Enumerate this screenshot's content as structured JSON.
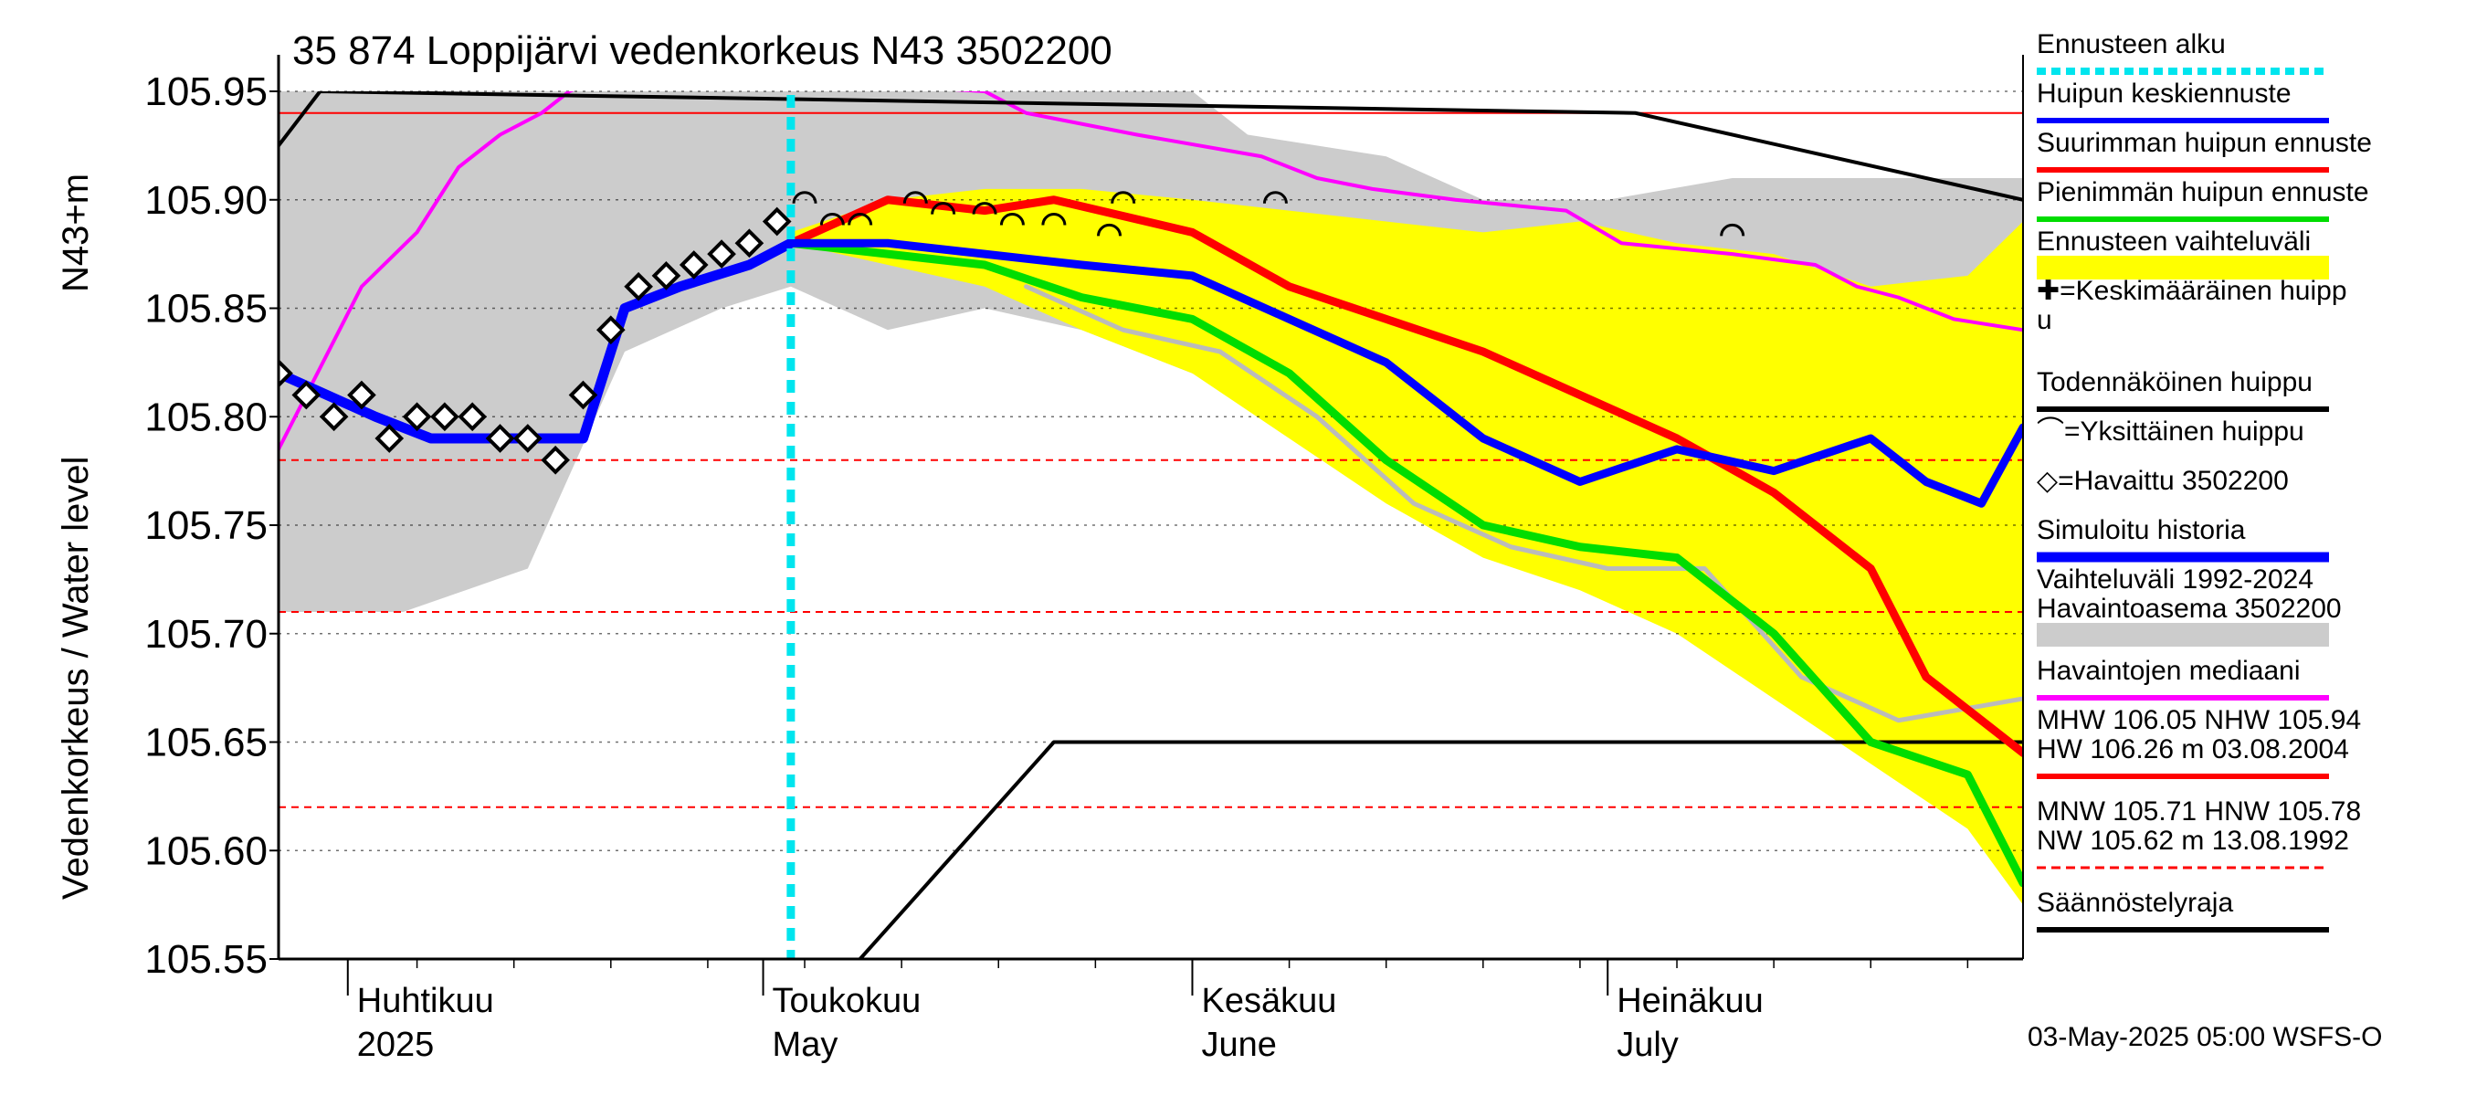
{
  "chart_data": {
    "type": "line",
    "title": "35 874 Loppijärvi vedenkorkeus N43 3502200",
    "ylabel_top": "N43+m",
    "ylabel": "Vedenkorkeus / Water level",
    "ylim": [
      105.55,
      105.95
    ],
    "yticks": [
      "105.55",
      "105.60",
      "105.65",
      "105.70",
      "105.75",
      "105.80",
      "105.85",
      "105.90",
      "105.95"
    ],
    "x_range": [
      "2025-03-27",
      "2025-07-31"
    ],
    "months": [
      {
        "fi": "Huhtikuu",
        "en": "2025",
        "date": "2025-04-01"
      },
      {
        "fi": "Toukokuu",
        "en": "May",
        "date": "2025-05-01"
      },
      {
        "fi": "Kesäkuu",
        "en": "June",
        "date": "2025-06-01"
      },
      {
        "fi": "Heinäkuu",
        "en": "July",
        "date": "2025-07-01"
      }
    ],
    "forecast_start": "2025-05-03",
    "reference_lines": {
      "NHW": 105.94,
      "HNW": 105.78,
      "MNW": 105.71,
      "NW": 105.62
    },
    "regulation_limit": {
      "x": [
        "2025-05-08",
        "2025-05-22",
        "2025-07-31"
      ],
      "y": [
        105.55,
        105.65,
        105.65
      ]
    },
    "probable_peak": {
      "x": [
        "2025-03-27",
        "2025-03-30",
        "2025-07-03",
        "2025-07-31"
      ],
      "y": [
        105.925,
        105.95,
        105.94,
        105.9
      ]
    },
    "series": [
      {
        "name": "Havaintojen mediaani",
        "color": "#ff00ff",
        "x": [
          "2025-03-27",
          "2025-04-02",
          "2025-04-06",
          "2025-04-09",
          "2025-04-12",
          "2025-04-15",
          "2025-04-17",
          "2025-04-19",
          "2025-04-21",
          "2025-05-17",
          "2025-05-20",
          "2025-05-28",
          "2025-06-06",
          "2025-06-10",
          "2025-06-14",
          "2025-06-20",
          "2025-06-28",
          "2025-07-02",
          "2025-07-10",
          "2025-07-16",
          "2025-07-19",
          "2025-07-22",
          "2025-07-26",
          "2025-07-31"
        ],
        "y": [
          105.785,
          105.86,
          105.885,
          105.915,
          105.93,
          105.94,
          105.95,
          105.955,
          105.96,
          105.95,
          105.94,
          105.93,
          105.92,
          105.91,
          105.905,
          105.9,
          105.895,
          105.88,
          105.875,
          105.87,
          105.86,
          105.855,
          105.845,
          105.84
        ]
      },
      {
        "name": "Havaittu 3502200",
        "color": "#000000",
        "x": [
          "2025-03-27",
          "2025-03-29",
          "2025-03-31",
          "2025-04-02",
          "2025-04-04",
          "2025-04-06",
          "2025-04-08",
          "2025-04-10",
          "2025-04-12",
          "2025-04-14",
          "2025-04-16",
          "2025-04-18",
          "2025-04-20",
          "2025-04-22",
          "2025-04-24",
          "2025-04-26",
          "2025-04-28",
          "2025-04-30",
          "2025-05-02"
        ],
        "y": [
          105.82,
          105.81,
          105.8,
          105.81,
          105.79,
          105.8,
          105.8,
          105.8,
          105.79,
          105.79,
          105.78,
          105.81,
          105.84,
          105.86,
          105.865,
          105.87,
          105.875,
          105.88,
          105.89
        ]
      },
      {
        "name": "Simuloitu historia",
        "color": "#0000ff",
        "x": [
          "2025-03-27",
          "2025-04-03",
          "2025-04-07",
          "2025-04-14",
          "2025-04-18",
          "2025-04-21",
          "2025-04-25",
          "2025-04-30",
          "2025-05-03"
        ],
        "y": [
          105.82,
          105.8,
          105.79,
          105.79,
          105.79,
          105.85,
          105.86,
          105.87,
          105.88
        ]
      },
      {
        "name": "Huipun keskiennuste",
        "color": "#0000ff",
        "x": [
          "2025-05-03",
          "2025-05-10",
          "2025-05-17",
          "2025-05-24",
          "2025-06-01",
          "2025-06-08",
          "2025-06-15",
          "2025-06-22",
          "2025-06-29",
          "2025-07-06",
          "2025-07-13",
          "2025-07-20",
          "2025-07-24",
          "2025-07-28",
          "2025-07-31"
        ],
        "y": [
          105.88,
          105.88,
          105.875,
          105.87,
          105.865,
          105.845,
          105.825,
          105.79,
          105.77,
          105.785,
          105.775,
          105.79,
          105.77,
          105.76,
          105.795
        ]
      },
      {
        "name": "Suurimman huipun ennuste",
        "color": "#ff0000",
        "x": [
          "2025-05-03",
          "2025-05-10",
          "2025-05-17",
          "2025-05-22",
          "2025-06-01",
          "2025-06-08",
          "2025-06-15",
          "2025-06-22",
          "2025-06-29",
          "2025-07-06",
          "2025-07-13",
          "2025-07-20",
          "2025-07-24",
          "2025-07-31"
        ],
        "y": [
          105.88,
          105.9,
          105.895,
          105.9,
          105.885,
          105.86,
          105.845,
          105.83,
          105.81,
          105.79,
          105.765,
          105.73,
          105.68,
          105.645
        ]
      },
      {
        "name": "Pienimmän huipun ennuste",
        "color": "#00dd00",
        "x": [
          "2025-05-03",
          "2025-05-10",
          "2025-05-17",
          "2025-05-24",
          "2025-06-01",
          "2025-06-08",
          "2025-06-15",
          "2025-06-22",
          "2025-06-29",
          "2025-07-06",
          "2025-07-13",
          "2025-07-20",
          "2025-07-27",
          "2025-07-31"
        ],
        "y": [
          105.88,
          105.875,
          105.87,
          105.855,
          105.845,
          105.82,
          105.78,
          105.75,
          105.74,
          105.735,
          105.7,
          105.65,
          105.635,
          105.585
        ]
      },
      {
        "name": "Ennusteen vaihteluväli",
        "color": "#ffff00",
        "x_upper": [
          "2025-05-03",
          "2025-05-10",
          "2025-05-17",
          "2025-05-24",
          "2025-06-01",
          "2025-06-08",
          "2025-06-15",
          "2025-06-22",
          "2025-06-29",
          "2025-07-06",
          "2025-07-13",
          "2025-07-20",
          "2025-07-27",
          "2025-07-31"
        ],
        "upper": [
          105.885,
          105.9,
          105.905,
          105.905,
          105.9,
          105.895,
          105.89,
          105.885,
          105.89,
          105.88,
          105.875,
          105.86,
          105.865,
          105.89
        ],
        "x_lower": [
          "2025-05-03",
          "2025-05-10",
          "2025-05-17",
          "2025-05-24",
          "2025-06-01",
          "2025-06-08",
          "2025-06-15",
          "2025-06-22",
          "2025-06-29",
          "2025-07-06",
          "2025-07-13",
          "2025-07-20",
          "2025-07-27",
          "2025-07-31"
        ],
        "lower": [
          105.88,
          105.87,
          105.86,
          105.84,
          105.82,
          105.79,
          105.76,
          105.735,
          105.72,
          105.7,
          105.67,
          105.64,
          105.61,
          105.575
        ]
      },
      {
        "name": "Vaihteluväli 1992-2024 Havaintoasema 3502200",
        "color": "#cccccc",
        "x_upper": [
          "2025-03-27",
          "2025-05-15",
          "2025-06-01",
          "2025-06-05",
          "2025-06-15",
          "2025-06-22",
          "2025-07-01",
          "2025-07-10",
          "2025-07-31"
        ],
        "upper": [
          105.95,
          105.95,
          105.95,
          105.93,
          105.92,
          105.9,
          105.9,
          105.91,
          105.91
        ],
        "x_lower": [
          "2025-03-27",
          "2025-04-05",
          "2025-04-14",
          "2025-04-21",
          "2025-04-28",
          "2025-05-03",
          "2025-05-10",
          "2025-05-17",
          "2025-05-24",
          "2025-06-01",
          "2025-06-10",
          "2025-06-20",
          "2025-07-01",
          "2025-07-15",
          "2025-07-31"
        ],
        "lower": [
          105.71,
          105.71,
          105.73,
          105.83,
          105.85,
          105.86,
          105.84,
          105.85,
          105.84,
          105.82,
          105.8,
          105.77,
          105.74,
          105.68,
          105.66
        ]
      },
      {
        "name": "Todennäköinen huippu grey",
        "color": "#bbbbbb",
        "x": [
          "2025-05-20",
          "2025-05-27",
          "2025-06-03",
          "2025-06-10",
          "2025-06-17",
          "2025-06-24",
          "2025-07-01",
          "2025-07-08",
          "2025-07-15",
          "2025-07-22",
          "2025-07-31"
        ],
        "y": [
          105.86,
          105.84,
          105.83,
          105.8,
          105.76,
          105.74,
          105.73,
          105.73,
          105.68,
          105.66,
          105.67
        ]
      }
    ],
    "peaks": {
      "x": [
        "2025-05-04",
        "2025-05-06",
        "2025-05-08",
        "2025-05-12",
        "2025-05-14",
        "2025-05-17",
        "2025-05-19",
        "2025-05-22",
        "2025-05-26",
        "2025-05-27",
        "2025-06-07",
        "2025-07-10"
      ],
      "y": [
        105.9,
        105.89,
        105.89,
        105.9,
        105.895,
        105.895,
        105.89,
        105.89,
        105.885,
        105.9,
        105.9,
        105.885
      ]
    },
    "legend": [
      {
        "label": "Ennusteen alku",
        "color": "#00e5ee",
        "style": "dashed"
      },
      {
        "label": "Huipun keskiennuste",
        "color": "#0000ff",
        "style": "line"
      },
      {
        "label": "Suurimman huipun ennuste",
        "color": "#ff0000",
        "style": "line"
      },
      {
        "label": "Pienimmän huipun ennuste",
        "color": "#00dd00",
        "style": "line"
      },
      {
        "label": "Ennusteen vaihteluväli",
        "color": "#ffff00",
        "style": "band"
      },
      {
        "label": "✚=Keskimääräinen huipp",
        "label2": "u",
        "style": "none"
      },
      {
        "label": "Todennäköinen huippu",
        "color": "#000000",
        "style": "line"
      },
      {
        "label": "⌒=Yksittäinen huippu",
        "style": "none"
      },
      {
        "label": "◇=Havaittu 3502200",
        "style": "none"
      },
      {
        "label": "Simuloitu historia",
        "color": "#0000ff",
        "style": "thick"
      },
      {
        "label": "Vaihteluväli 1992-2024",
        "label2": " Havaintoasema 3502200",
        "color": "#cccccc",
        "style": "band"
      },
      {
        "label": "Havaintojen mediaani",
        "color": "#ff00ff",
        "style": "line"
      },
      {
        "label": "MHW 106.05 NHW 105.94",
        "label2": "HW 106.26 m 03.08.2004",
        "color": "#ff0000",
        "style": "line"
      },
      {
        "label": "MNW 105.71 HNW 105.78",
        "label2": "NW 105.62 m 13.08.1992",
        "color": "#ff0000",
        "style": "dashed"
      },
      {
        "label": "Säännöstelyraja",
        "color": "#000000",
        "style": "line"
      }
    ],
    "footer": "03-May-2025 05:00 WSFS-O"
  }
}
